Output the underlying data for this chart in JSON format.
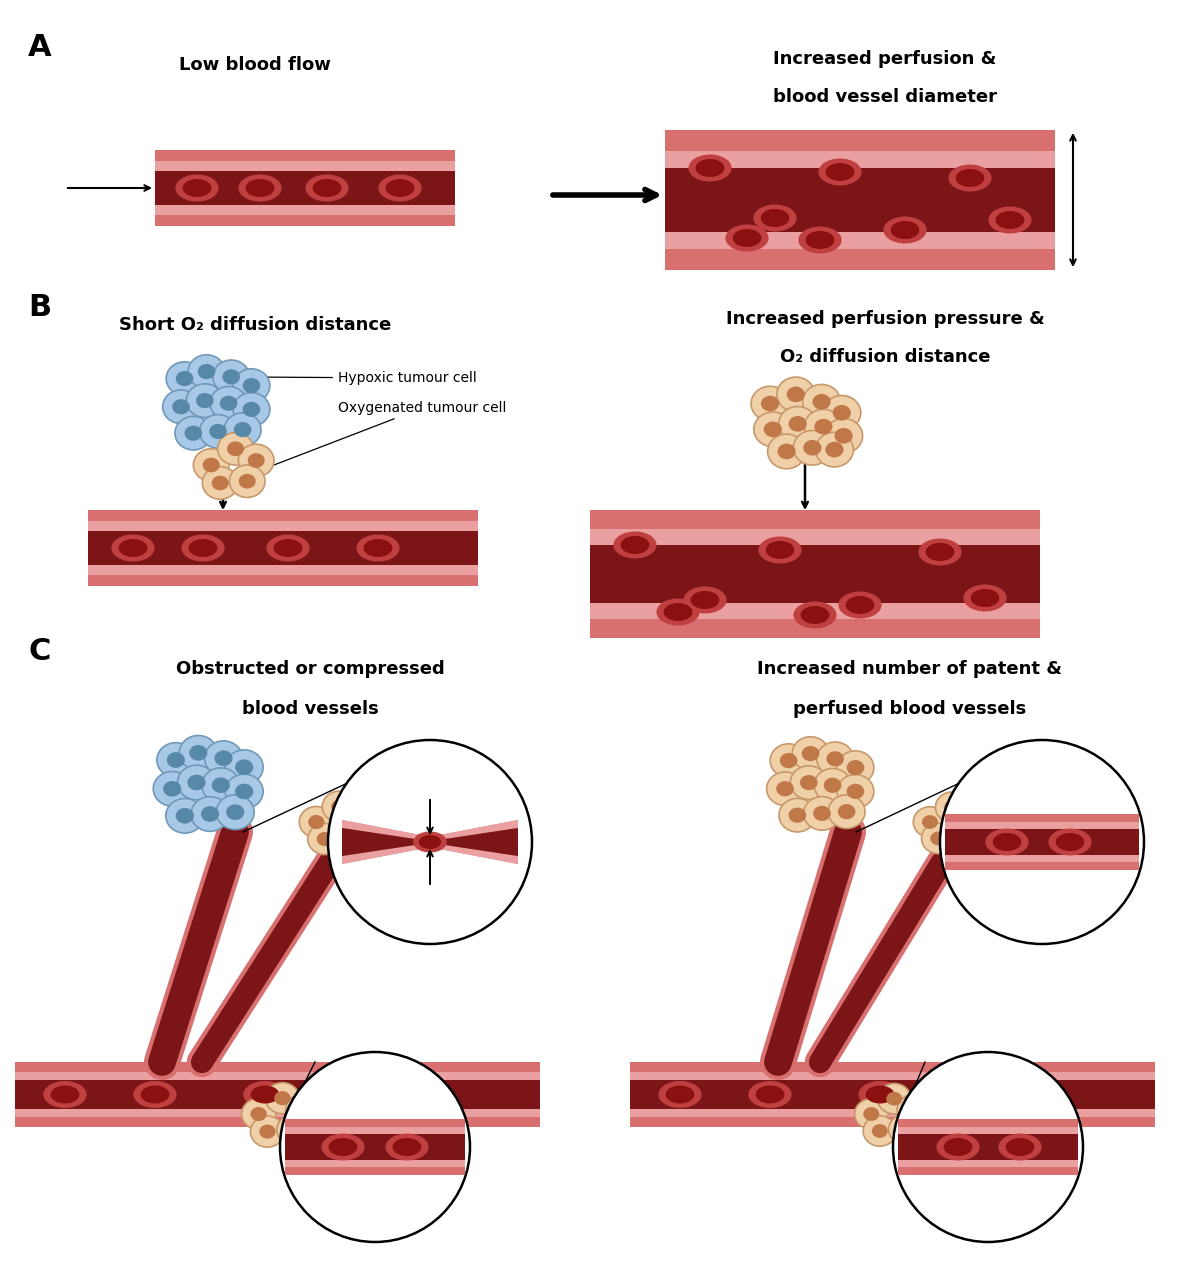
{
  "bg_color": "#ffffff",
  "vessel_dark": "#7B1518",
  "vessel_pink": "#D97070",
  "vessel_light": "#EAA0A0",
  "vessel_outer": "#D88080",
  "rbc_outer": "#C04040",
  "rbc_inner": "#8B1010",
  "hypoxic_fill": "#A8C8E8",
  "hypoxic_border": "#7098B8",
  "hypoxic_nucleus": "#5888A8",
  "oxy_fill": "#F0D0A8",
  "oxy_border": "#C8986A",
  "oxy_nucleus": "#C07848",
  "black": "#000000",
  "label_A": "A",
  "label_B": "B",
  "label_C": "C",
  "title_A_left": "Low blood flow",
  "title_A_right1": "Increased perfusion &",
  "title_A_right2": "blood vessel diameter",
  "title_B_left": "Short O₂ diffusion distance",
  "title_B_right1": "Increased perfusion pressure &",
  "title_B_right2": "O₂ diffusion distance",
  "title_C_left1": "Obstructed or compressed",
  "title_C_left2": "blood vessels",
  "title_C_right1": "Increased number of patent &",
  "title_C_right2": "perfused blood vessels",
  "lbl_hypoxic": "Hypoxic tumour cell",
  "lbl_oxy": "Oxygenated tumour cell"
}
